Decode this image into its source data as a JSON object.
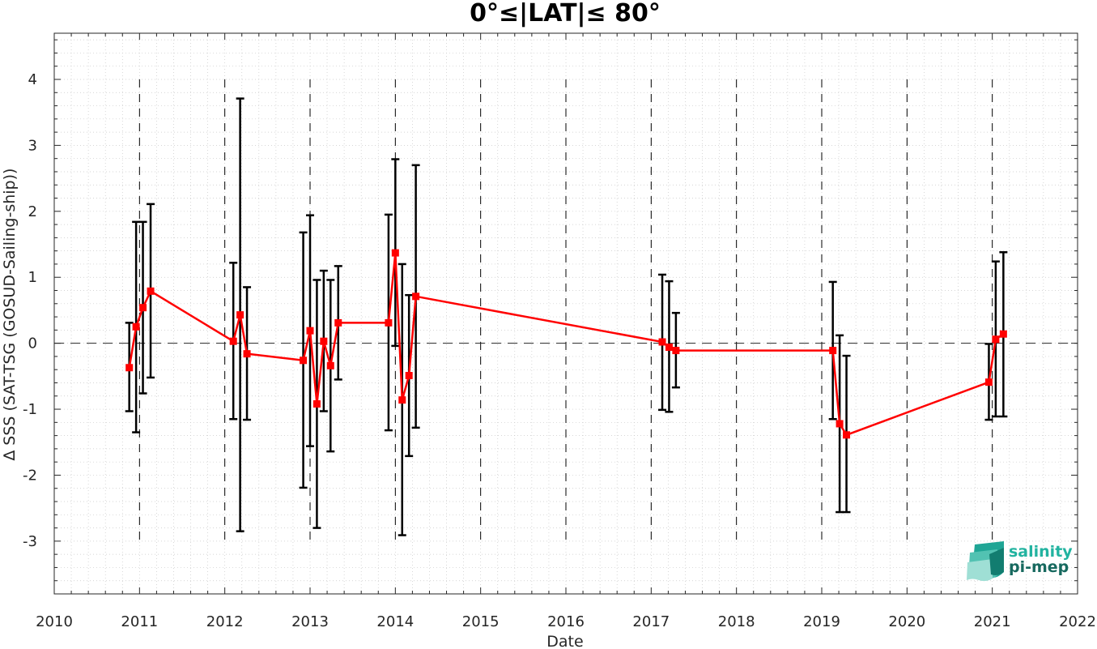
{
  "chart_data": {
    "type": "line",
    "title": "0°≤|LAT|≤ 80°",
    "xlabel": "Date",
    "ylabel": "∆ SSS (SAT-TSG (GOSUD-Sailing-ship))",
    "xlim": [
      2010,
      2022
    ],
    "ylim": [
      -3.8,
      4.7
    ],
    "x_ticks": [
      "2010",
      "2011",
      "2012",
      "2013",
      "2014",
      "2015",
      "2016",
      "2017",
      "2018",
      "2019",
      "2020",
      "2021",
      "2022"
    ],
    "y_ticks": [
      "-3",
      "-2",
      "-1",
      "0",
      "1",
      "2",
      "3",
      "4"
    ],
    "grid": "dotted minor",
    "year_markers": [
      2011,
      2012,
      2013,
      2014,
      2015,
      2016,
      2017,
      2018,
      2019,
      2020,
      2021
    ],
    "series": [
      {
        "color": "#ff0000",
        "marker": "square",
        "x": [
          2010.88,
          2010.96,
          2011.04,
          2011.13,
          2012.1,
          2012.18,
          2012.26,
          2012.92,
          2013.0,
          2013.08,
          2013.16,
          2013.24,
          2013.33,
          2013.92,
          2014.0,
          2014.08,
          2014.16,
          2014.24,
          2017.13,
          2017.21,
          2017.29,
          2019.13,
          2019.21,
          2019.29,
          2020.96,
          2021.04,
          2021.13
        ],
        "y": [
          -0.37,
          0.25,
          0.54,
          0.79,
          0.03,
          0.43,
          -0.16,
          -0.26,
          0.19,
          -0.92,
          0.03,
          -0.34,
          0.31,
          0.31,
          1.37,
          -0.86,
          -0.49,
          0.71,
          0.02,
          -0.06,
          -0.11,
          -0.11,
          -1.22,
          -1.39,
          -0.59,
          0.06,
          0.14
        ],
        "err_low": [
          -1.03,
          -1.35,
          -0.76,
          -0.52,
          -1.15,
          -2.85,
          -1.16,
          -2.19,
          -1.56,
          -2.8,
          -1.03,
          -1.64,
          -0.55,
          -1.32,
          -0.04,
          -2.91,
          -1.71,
          -1.28,
          -1.01,
          -1.04,
          -0.67,
          -1.15,
          -2.56,
          -2.56,
          -1.16,
          -1.11,
          -1.11
        ],
        "err_high": [
          0.31,
          1.84,
          1.84,
          2.11,
          1.22,
          3.71,
          0.85,
          1.68,
          1.94,
          0.96,
          1.1,
          0.96,
          1.17,
          1.95,
          2.79,
          1.2,
          0.73,
          2.7,
          1.04,
          0.94,
          0.46,
          0.93,
          0.12,
          -0.19,
          -0.01,
          1.24,
          1.38
        ]
      }
    ]
  },
  "logo": {
    "line1": "salinity",
    "line2": "pi-mep"
  }
}
